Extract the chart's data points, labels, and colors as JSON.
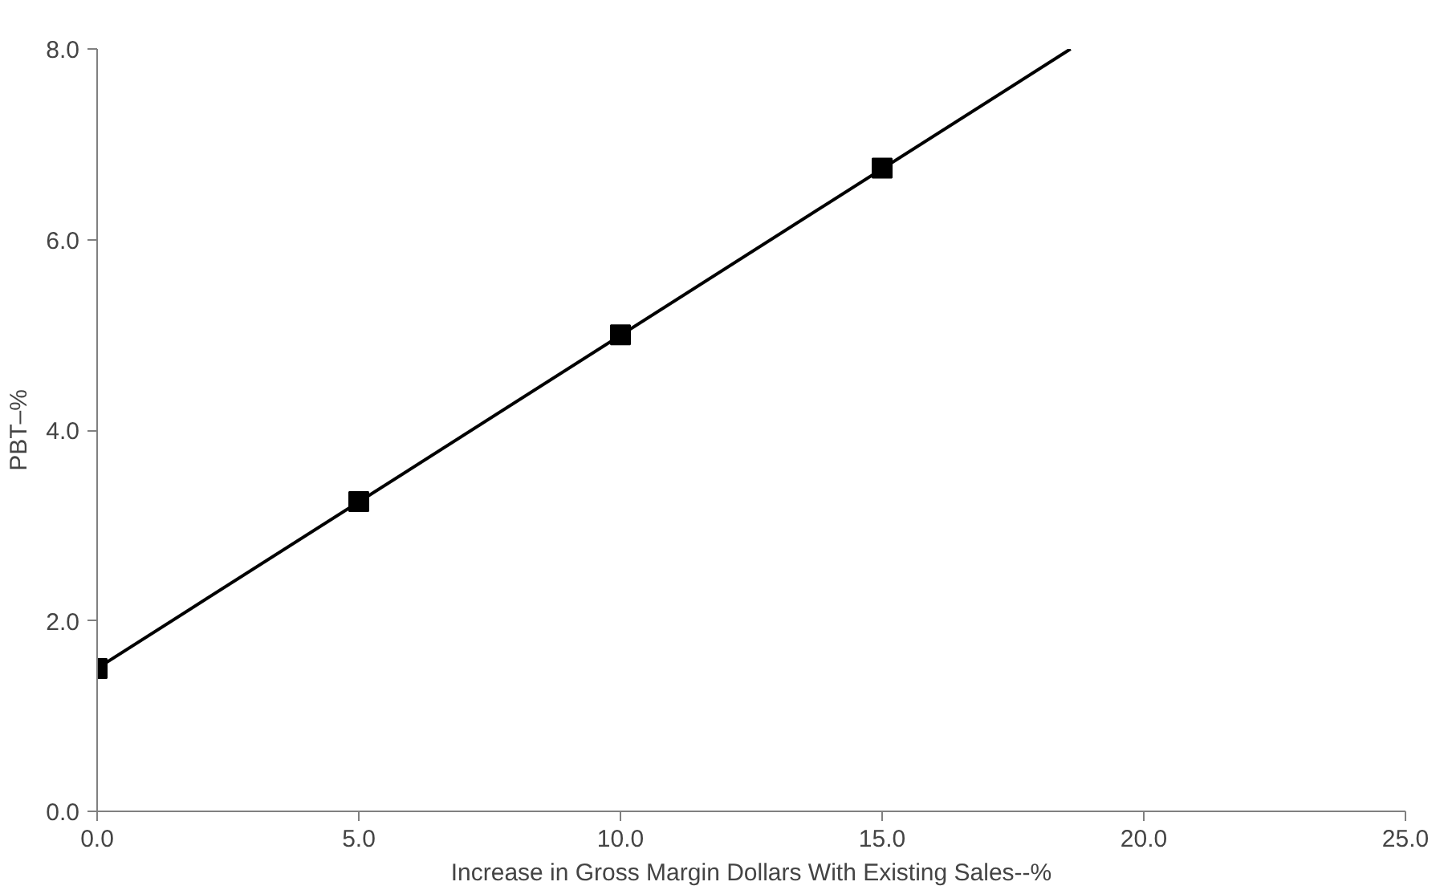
{
  "chart_data": {
    "type": "scatter",
    "xlabel": "Increase in Gross Margin Dollars With Existing Sales--%",
    "ylabel": "PBT–%",
    "x": [
      0,
      5,
      10,
      15
    ],
    "series": [
      {
        "type": "line",
        "color": "#000000",
        "x": [
          0,
          18.6
        ],
        "values": [
          1.5,
          8.0
        ],
        "marker": "none"
      },
      {
        "color": "#000000",
        "values": [
          1.5,
          3.25,
          5.0,
          6.75
        ],
        "marker": "square"
      }
    ],
    "xlim": [
      0,
      25
    ],
    "ylim": [
      0,
      8
    ],
    "xticks": [
      {
        "value": 0,
        "label": "0.0"
      },
      {
        "value": 5,
        "label": "5.0"
      },
      {
        "value": 10,
        "label": "10.0"
      },
      {
        "value": 15,
        "label": "15.0"
      },
      {
        "value": 20,
        "label": "20.0"
      },
      {
        "value": 25,
        "label": "25.0"
      }
    ],
    "yticks": [
      {
        "value": 0,
        "label": "0.0"
      },
      {
        "value": 2,
        "label": "2.0"
      },
      {
        "value": 4,
        "label": "4.0"
      },
      {
        "value": 6,
        "label": "6.0"
      },
      {
        "value": 8,
        "label": "8.0"
      }
    ],
    "grid": false
  }
}
